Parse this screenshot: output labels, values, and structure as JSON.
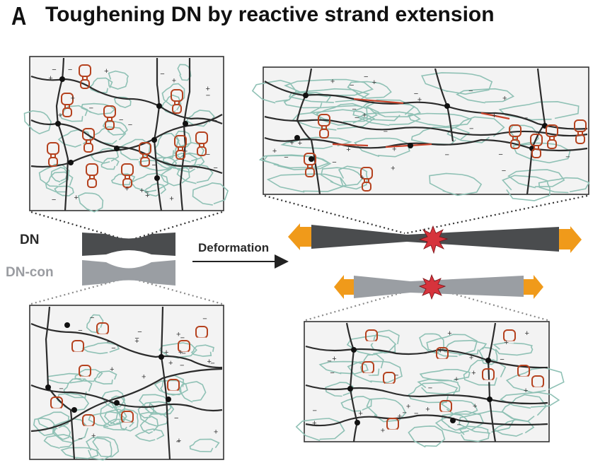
{
  "panel": {
    "letter": "A",
    "title": "Toughening DN by reactive strand extension"
  },
  "labels": {
    "dn": "DN",
    "dn_con": "DN-con",
    "deformation": "Deformation"
  },
  "colors": {
    "network_strand": "#2b2b2b",
    "loose_chain": "#8fc1b5",
    "reactive_group": "#b5421f",
    "extended_segment": "#c8422a",
    "dn_specimen": "#4a4c4e",
    "dn_con_specimen": "#9a9ea3",
    "arrow_head": "#f09a1a",
    "fracture_mark": "#d6333c",
    "panel_bg": "#f3f3f3"
  },
  "icons": {
    "deformation_arrow": "arrow-right-icon",
    "pull_arrows": "double-headed-pull-arrow-icon",
    "crack": "starburst-fracture-icon"
  }
}
